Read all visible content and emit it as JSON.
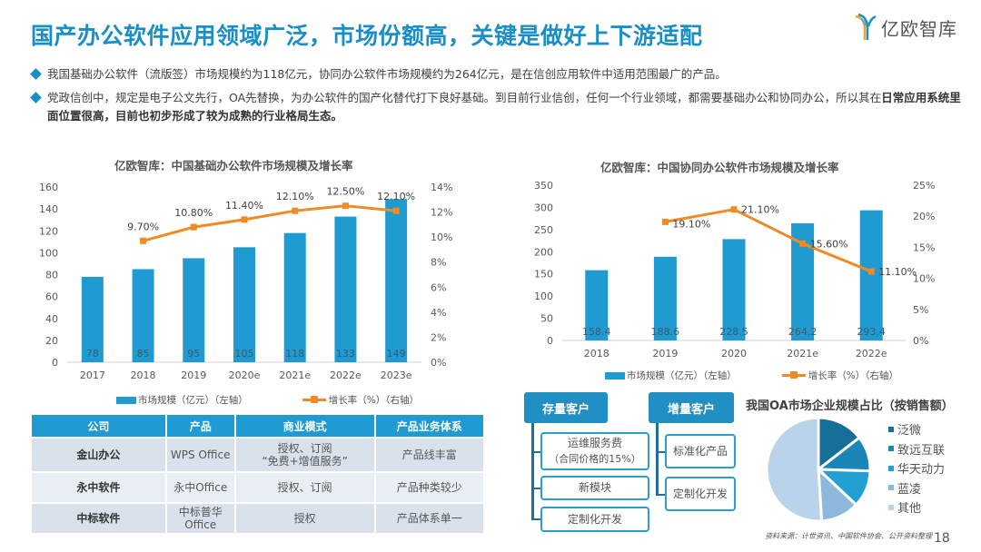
{
  "header": {
    "title": "国产办公软件应用领域广泛，市场份额高，关键是做好上下游适配",
    "logo_text": "亿欧智库",
    "logo_icon": "yiou-y-logo-icon"
  },
  "bullets": [
    {
      "text": "我国基础办公软件（流版签）市场规模约为118亿元，协同办公软件市场规模约为264亿元，是在信创应用软件中适用范围最广的产品。",
      "bold": ""
    },
    {
      "text": "党政信创中，规定是电子公文先行，OA先替换，为办公软件的国产化替代打下良好基础。到目前行业信创，任何一个行业领域，都需要基础办公和协同办公，所以其在",
      "bold": "日常应用系统里面位置很高，目前也初步形成了较为成熟的行业格局生态。"
    }
  ],
  "colors": {
    "accent": "#1a8fc7",
    "bar": "#1f9bd1",
    "line": "#f08a24",
    "table_header": "#1f9bd1",
    "pie": [
      "#156f99",
      "#1a86b8",
      "#22a0d4",
      "#8db8dc",
      "#b9d3ea"
    ]
  },
  "chart_data": [
    {
      "type": "bar",
      "title": "亿欧智库：中国基础办公软件市场规模及增长率",
      "categories": [
        "2017",
        "2018",
        "2019",
        "2020e",
        "2021e",
        "2022e",
        "2023e"
      ],
      "series": [
        {
          "name": "市场规模（亿元）（左轴）",
          "type": "bar",
          "axis": "left",
          "values": [
            78,
            85,
            95,
            105,
            118,
            133,
            149
          ],
          "labels": [
            "78",
            "85",
            "95",
            "105",
            "118",
            "133",
            "149"
          ]
        },
        {
          "name": "增长率（%）（右轴）",
          "type": "line",
          "axis": "right",
          "values": [
            null,
            9.7,
            10.8,
            11.4,
            12.1,
            12.5,
            12.1
          ],
          "labels": [
            "",
            "9.70%",
            "10.80%",
            "11.40%",
            "12.10%",
            "12.50%",
            "12.10%"
          ]
        }
      ],
      "ylim_left": [
        0,
        160
      ],
      "yticks_left": [
        "0",
        "20",
        "40",
        "60",
        "80",
        "100",
        "120",
        "140",
        "160"
      ],
      "ylim_right": [
        0,
        14
      ],
      "yticks_right": [
        "0%",
        "2%",
        "4%",
        "6%",
        "8%",
        "10%",
        "12%",
        "14%"
      ],
      "legend_position": "bottom",
      "grid": false
    },
    {
      "type": "bar",
      "title": "亿欧智库：中国协同办公软件市场规模及增长率",
      "categories": [
        "2018",
        "2019",
        "2020",
        "2021e",
        "2022e"
      ],
      "series": [
        {
          "name": "市场规模（亿元）（左轴）",
          "type": "bar",
          "axis": "left",
          "values": [
            158.4,
            188.6,
            228.5,
            264.2,
            293.4
          ],
          "labels": [
            "158.4",
            "188.6",
            "228.5",
            "264.2",
            "293.4"
          ]
        },
        {
          "name": "增长率（%）（右轴）",
          "type": "line",
          "axis": "right",
          "values": [
            null,
            19.1,
            21.1,
            15.6,
            11.1
          ],
          "labels": [
            "",
            "19.10%",
            "21.10%",
            "15.60%",
            "11.10%"
          ]
        }
      ],
      "ylim_left": [
        0,
        350
      ],
      "yticks_left": [
        "0",
        "50",
        "100",
        "150",
        "200",
        "250",
        "300",
        "350"
      ],
      "ylim_right": [
        0,
        25
      ],
      "yticks_right": [
        "0%",
        "5%",
        "10%",
        "15%",
        "20%",
        "25%"
      ],
      "legend_position": "bottom",
      "grid": false
    },
    {
      "type": "pie",
      "title": "我国OA市场企业规模占比（按销售额）",
      "labels": [
        "泛微",
        "致远互联",
        "华天动力",
        "蓝凌",
        "其他"
      ],
      "values": [
        14.5,
        11,
        11.5,
        12,
        51
      ],
      "legend_position": "right"
    }
  ],
  "table": {
    "headers": [
      "公司",
      "产品",
      "商业模式",
      "产品业务体系"
    ],
    "rows": [
      {
        "company": "金山办公",
        "product": "WPS Office",
        "model_line1": "授权、订阅",
        "model_line2": "“免费+增值服务”",
        "system": "产品线丰富"
      },
      {
        "company": "永中软件",
        "product": "永中Office",
        "model_line1": "授权、订阅",
        "model_line2": "",
        "system": "产品种类较少"
      },
      {
        "company": "中标软件",
        "product": "中标普华Office",
        "model_line1": "授权",
        "model_line2": "",
        "system": "产品体系单一"
      }
    ]
  },
  "customer_tree": {
    "existing": {
      "title": "存量客户",
      "items": [
        {
          "line1": "运维服务费",
          "line2": "（合同价格的15%）"
        },
        {
          "line1": "新模块",
          "line2": ""
        },
        {
          "line1": "定制化开发",
          "line2": ""
        }
      ]
    },
    "incremental": {
      "title": "增量客户",
      "items": [
        {
          "line1": "标准化产品",
          "line2": ""
        },
        {
          "line1": "定制化开发",
          "line2": ""
        }
      ]
    }
  },
  "footer": {
    "source": "资料来源：计世资讯、中国软件协会、公开资料整理",
    "page_number": "18"
  }
}
